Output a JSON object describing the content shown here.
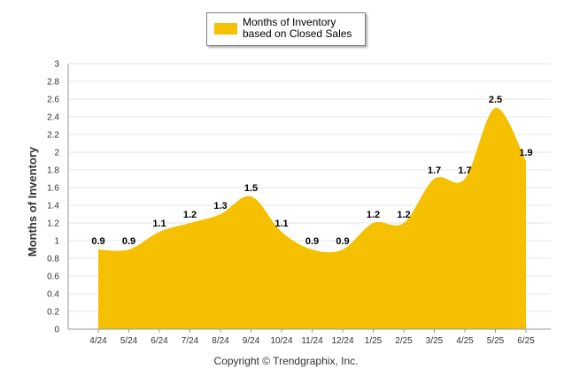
{
  "chart_data": {
    "type": "area",
    "title": "",
    "xlabel": "",
    "ylabel": "Months of Inventory",
    "categories": [
      "4/24",
      "5/24",
      "6/24",
      "7/24",
      "8/24",
      "9/24",
      "10/24",
      "11/24",
      "12/24",
      "1/25",
      "2/25",
      "3/25",
      "4/25",
      "5/25",
      "6/25"
    ],
    "series": [
      {
        "name": "Months of Inventory based on Closed Sales",
        "values": [
          0.9,
          0.9,
          1.1,
          1.2,
          1.3,
          1.5,
          1.1,
          0.9,
          0.9,
          1.2,
          1.2,
          1.7,
          1.7,
          2.5,
          1.9
        ]
      }
    ],
    "ylim": [
      0,
      3
    ],
    "yticks": [
      "0",
      "0.2",
      "0.4",
      "0.6",
      "0.8",
      "1",
      "1.2",
      "1.4",
      "1.6",
      "1.8",
      "2",
      "2.2",
      "2.4",
      "2.6",
      "2.8",
      "3"
    ],
    "grid": true,
    "legend_position": "top-center",
    "colors": {
      "fill": "#F5C000",
      "grid": "#e6e6e6",
      "axis": "#999999"
    }
  },
  "legend": {
    "label": "Months of Inventory based on Closed Sales"
  },
  "footer": {
    "credit": "Copyright © Trendgraphix, Inc."
  }
}
